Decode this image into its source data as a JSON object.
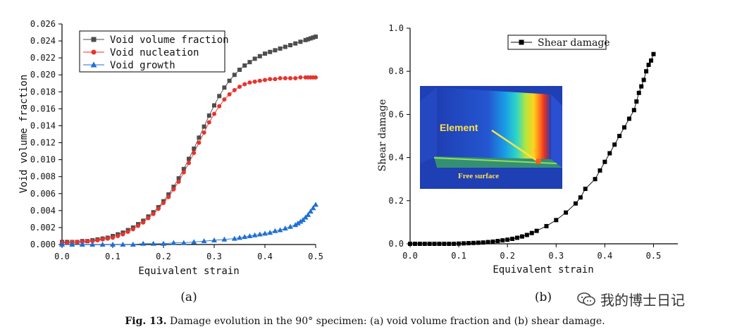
{
  "caption": {
    "label": "Fig. 13.",
    "text": "Damage evolution in the 90° specimen: (a) void volume fraction and (b) shear damage."
  },
  "watermark": {
    "text": "我的博士日记",
    "icon": "wechat-icon"
  },
  "panel_labels": {
    "a": "(a)",
    "b": "(b)"
  },
  "inset": {
    "element_label": "Element",
    "surface_label": "Free surface"
  },
  "chart_data": [
    {
      "type": "line",
      "xlabel": "Equivalent strain",
      "ylabel": "Void volume fraction",
      "xlim": [
        0.0,
        0.5
      ],
      "ylim": [
        0.0,
        0.026
      ],
      "xticks": [
        "0.0",
        "0.1",
        "0.2",
        "0.3",
        "0.4",
        "0.5"
      ],
      "yticks": [
        "0.000",
        "0.002",
        "0.004",
        "0.006",
        "0.008",
        "0.010",
        "0.012",
        "0.014",
        "0.016",
        "0.018",
        "0.020",
        "0.022",
        "0.024",
        "0.026"
      ],
      "legend_position": "top-left",
      "series": [
        {
          "name": "Void volume fraction",
          "color": "#4d4d4d",
          "marker": "square",
          "x": [
            0.0,
            0.01,
            0.02,
            0.03,
            0.04,
            0.05,
            0.06,
            0.07,
            0.08,
            0.09,
            0.1,
            0.11,
            0.12,
            0.13,
            0.14,
            0.15,
            0.16,
            0.17,
            0.18,
            0.19,
            0.2,
            0.21,
            0.22,
            0.23,
            0.24,
            0.25,
            0.26,
            0.27,
            0.28,
            0.29,
            0.3,
            0.31,
            0.32,
            0.33,
            0.34,
            0.35,
            0.36,
            0.37,
            0.38,
            0.39,
            0.4,
            0.41,
            0.42,
            0.43,
            0.44,
            0.45,
            0.46,
            0.47,
            0.48,
            0.485,
            0.49,
            0.495,
            0.5
          ],
          "values": [
            0.0003,
            0.0003,
            0.0003,
            0.0003,
            0.0004,
            0.0004,
            0.0005,
            0.0006,
            0.0007,
            0.0008,
            0.001,
            0.0012,
            0.0014,
            0.0017,
            0.002,
            0.0024,
            0.0028,
            0.0033,
            0.0038,
            0.0044,
            0.0051,
            0.0059,
            0.0068,
            0.0078,
            0.0089,
            0.0101,
            0.0113,
            0.0126,
            0.0139,
            0.0152,
            0.0164,
            0.0175,
            0.0185,
            0.0193,
            0.02,
            0.0206,
            0.0211,
            0.0215,
            0.0219,
            0.0222,
            0.0225,
            0.0227,
            0.0229,
            0.0231,
            0.0233,
            0.0235,
            0.0237,
            0.0239,
            0.0241,
            0.0242,
            0.0243,
            0.0244,
            0.0245
          ]
        },
        {
          "name": "Void nucleation",
          "color": "#e8332c",
          "marker": "circle",
          "x": [
            0.0,
            0.01,
            0.02,
            0.03,
            0.04,
            0.05,
            0.06,
            0.07,
            0.08,
            0.09,
            0.1,
            0.11,
            0.12,
            0.13,
            0.14,
            0.15,
            0.16,
            0.17,
            0.18,
            0.19,
            0.2,
            0.21,
            0.22,
            0.23,
            0.24,
            0.25,
            0.26,
            0.27,
            0.28,
            0.29,
            0.3,
            0.31,
            0.32,
            0.33,
            0.34,
            0.35,
            0.36,
            0.37,
            0.38,
            0.39,
            0.4,
            0.41,
            0.42,
            0.43,
            0.44,
            0.45,
            0.46,
            0.47,
            0.48,
            0.485,
            0.49,
            0.495,
            0.5
          ],
          "values": [
            0.0002,
            0.0002,
            0.0003,
            0.0003,
            0.0003,
            0.0004,
            0.0004,
            0.0005,
            0.0006,
            0.0007,
            0.0008,
            0.001,
            0.0012,
            0.0015,
            0.0018,
            0.0022,
            0.0026,
            0.0031,
            0.0036,
            0.0042,
            0.0049,
            0.0056,
            0.0065,
            0.0074,
            0.0085,
            0.0096,
            0.0108,
            0.012,
            0.0132,
            0.0144,
            0.0154,
            0.0163,
            0.0171,
            0.0177,
            0.0182,
            0.0186,
            0.0189,
            0.0191,
            0.0192,
            0.0193,
            0.0194,
            0.0195,
            0.0195,
            0.0196,
            0.0196,
            0.0196,
            0.0196,
            0.0197,
            0.0197,
            0.0197,
            0.0197,
            0.0197,
            0.0197
          ]
        },
        {
          "name": "Void growth",
          "color": "#1f6fd6",
          "marker": "triangle",
          "x": [
            0.0,
            0.02,
            0.04,
            0.06,
            0.08,
            0.1,
            0.12,
            0.14,
            0.16,
            0.18,
            0.2,
            0.22,
            0.24,
            0.26,
            0.28,
            0.3,
            0.32,
            0.34,
            0.35,
            0.36,
            0.37,
            0.38,
            0.39,
            0.4,
            0.41,
            0.42,
            0.43,
            0.44,
            0.45,
            0.46,
            0.465,
            0.47,
            0.475,
            0.48,
            0.485,
            0.49,
            0.495,
            0.5
          ],
          "values": [
            0.0,
            0.0,
            0.0,
            0.0,
            0.0,
            0.0,
            0.0,
            0.0,
            0.0001,
            0.0001,
            0.0001,
            0.0002,
            0.0002,
            0.0003,
            0.0004,
            0.0005,
            0.0006,
            0.0007,
            0.0008,
            0.0009,
            0.001,
            0.0011,
            0.0012,
            0.0013,
            0.0014,
            0.0016,
            0.0017,
            0.0019,
            0.0021,
            0.0023,
            0.0025,
            0.0027,
            0.0029,
            0.0032,
            0.0035,
            0.0039,
            0.0043,
            0.0047
          ]
        }
      ]
    },
    {
      "type": "scatter",
      "xlabel": "Equivalent strain",
      "ylabel": "Shear damage",
      "xlim": [
        0.0,
        0.55
      ],
      "ylim": [
        0.0,
        1.0
      ],
      "xticks": [
        "0.0",
        "0.1",
        "0.2",
        "0.3",
        "0.4",
        "0.5"
      ],
      "yticks": [
        "0.0",
        "0.2",
        "0.4",
        "0.6",
        "0.8",
        "1.0"
      ],
      "legend_position": "top-left",
      "series": [
        {
          "name": "Shear damage",
          "color": "#000000",
          "marker": "square",
          "x": [
            0.0,
            0.01,
            0.02,
            0.03,
            0.04,
            0.05,
            0.06,
            0.07,
            0.08,
            0.09,
            0.1,
            0.11,
            0.12,
            0.13,
            0.14,
            0.15,
            0.16,
            0.17,
            0.18,
            0.19,
            0.2,
            0.21,
            0.22,
            0.23,
            0.24,
            0.25,
            0.26,
            0.28,
            0.3,
            0.32,
            0.34,
            0.35,
            0.36,
            0.38,
            0.39,
            0.4,
            0.41,
            0.42,
            0.43,
            0.44,
            0.45,
            0.46,
            0.465,
            0.47,
            0.475,
            0.48,
            0.485,
            0.49,
            0.495,
            0.5
          ],
          "values": [
            0.0,
            0.0,
            0.0,
            0.0,
            0.0,
            0.0,
            0.0,
            0.0,
            0.0,
            0.0,
            0.001,
            0.002,
            0.003,
            0.004,
            0.005,
            0.006,
            0.008,
            0.01,
            0.013,
            0.016,
            0.019,
            0.023,
            0.028,
            0.034,
            0.041,
            0.05,
            0.06,
            0.082,
            0.11,
            0.145,
            0.187,
            0.215,
            0.255,
            0.3,
            0.34,
            0.38,
            0.42,
            0.46,
            0.5,
            0.54,
            0.58,
            0.62,
            0.66,
            0.7,
            0.73,
            0.76,
            0.8,
            0.83,
            0.85,
            0.88
          ]
        }
      ]
    }
  ]
}
